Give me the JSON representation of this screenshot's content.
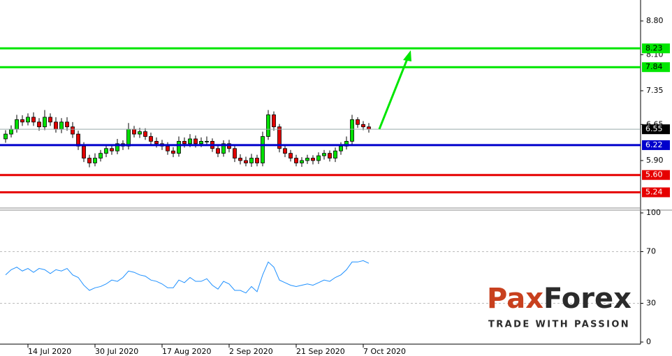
{
  "chart_data": [
    {
      "type": "candlestick",
      "ylim": [
        4.914,
        9.235
      ],
      "yticks": [
        {
          "value": 8.8,
          "label": "8.80"
        },
        {
          "value": 8.1,
          "label": "8.10"
        },
        7.35,
        6.65,
        {
          "value": 5.9,
          "label": "5.90"
        }
      ],
      "up_color": "#00e000",
      "down_color": "#e00000",
      "open": [
        6.35,
        6.45,
        6.55,
        6.75,
        6.7,
        6.8,
        6.7,
        6.6,
        6.8,
        6.7,
        6.55,
        6.7,
        6.6,
        6.45,
        6.2,
        5.95,
        5.85,
        5.95,
        6.05,
        6.15,
        6.1,
        6.25,
        6.2,
        6.55,
        6.45,
        6.5,
        6.4,
        6.3,
        6.25,
        6.2,
        6.1,
        6.05,
        6.3,
        6.25,
        6.35,
        6.25,
        6.3,
        6.3,
        6.15,
        6.05,
        6.25,
        6.15,
        5.95,
        5.9,
        5.85,
        5.95,
        5.85,
        6.4,
        6.85,
        6.6,
        6.15,
        6.05,
        5.95,
        5.85,
        5.9,
        5.95,
        5.9,
        6.0,
        6.05,
        5.95,
        6.1,
        6.2,
        6.3,
        6.75,
        6.65,
        6.6
      ],
      "high": [
        6.53,
        6.63,
        6.85,
        6.84,
        6.88,
        6.9,
        6.78,
        6.95,
        6.88,
        6.8,
        6.78,
        6.8,
        6.7,
        6.52,
        6.28,
        6.02,
        6.05,
        6.12,
        6.22,
        6.22,
        6.35,
        6.32,
        6.68,
        6.62,
        6.58,
        6.57,
        6.48,
        6.38,
        6.33,
        6.28,
        6.18,
        6.4,
        6.38,
        6.45,
        6.42,
        6.38,
        6.4,
        6.36,
        6.22,
        6.32,
        6.33,
        6.22,
        6.03,
        5.98,
        6.04,
        6.02,
        6.5,
        6.95,
        6.92,
        6.66,
        6.24,
        6.12,
        6.02,
        5.97,
        6.02,
        6.01,
        6.07,
        6.12,
        6.11,
        6.17,
        6.28,
        6.4,
        6.85,
        6.8,
        6.72,
        6.68
      ],
      "low": [
        6.27,
        6.38,
        6.48,
        6.62,
        6.63,
        6.62,
        6.52,
        6.53,
        6.62,
        6.48,
        6.47,
        6.52,
        6.37,
        6.12,
        5.87,
        5.76,
        5.78,
        5.88,
        5.97,
        6.02,
        6.03,
        6.12,
        6.13,
        6.38,
        6.37,
        6.33,
        6.22,
        6.17,
        6.12,
        6.02,
        5.97,
        5.98,
        6.17,
        6.18,
        6.17,
        6.18,
        6.22,
        6.08,
        5.97,
        5.98,
        6.07,
        5.87,
        5.82,
        5.78,
        5.77,
        5.78,
        5.78,
        6.33,
        6.52,
        6.07,
        5.97,
        5.88,
        5.78,
        5.77,
        5.83,
        5.82,
        5.83,
        5.92,
        5.88,
        5.87,
        6.02,
        6.13,
        6.22,
        6.58,
        6.53,
        6.48
      ],
      "close": [
        6.45,
        6.55,
        6.75,
        6.7,
        6.8,
        6.7,
        6.6,
        6.8,
        6.7,
        6.55,
        6.7,
        6.6,
        6.45,
        6.2,
        5.95,
        5.85,
        5.95,
        6.05,
        6.15,
        6.1,
        6.25,
        6.2,
        6.55,
        6.45,
        6.5,
        6.4,
        6.3,
        6.25,
        6.2,
        6.1,
        6.05,
        6.3,
        6.25,
        6.35,
        6.25,
        6.3,
        6.3,
        6.15,
        6.05,
        6.25,
        6.15,
        5.95,
        5.9,
        5.85,
        5.95,
        5.85,
        6.4,
        6.85,
        6.6,
        6.15,
        6.05,
        5.95,
        5.85,
        5.9,
        5.95,
        5.9,
        6.0,
        6.05,
        5.95,
        6.1,
        6.2,
        6.3,
        6.75,
        6.65,
        6.6,
        6.55
      ],
      "current_price": {
        "value": 6.55,
        "color": "#000000"
      },
      "levels": [
        {
          "value": 8.23,
          "color": "#00e600"
        },
        {
          "value": 7.84,
          "color": "#00e600"
        },
        {
          "value": 6.22,
          "color": "#0000cc"
        },
        {
          "value": 5.6,
          "label": "5.60",
          "color": "#e60000"
        },
        {
          "value": 5.24,
          "color": "#e60000"
        }
      ]
    },
    {
      "type": "line",
      "color": "#1e90ff",
      "ylim": [
        0,
        100
      ],
      "yticks": [
        100,
        70,
        30,
        0
      ],
      "dashed_levels": [
        70,
        30
      ],
      "categories": [
        null,
        null,
        null,
        null,
        "14 Jul 2020",
        null,
        null,
        null,
        null,
        null,
        null,
        null,
        null,
        null,
        null,
        null,
        "30 Jul 2020",
        null,
        null,
        null,
        null,
        null,
        null,
        null,
        null,
        null,
        null,
        null,
        "17 Aug 2020",
        null,
        null,
        null,
        null,
        null,
        null,
        null,
        null,
        null,
        null,
        null,
        "2 Sep 2020",
        null,
        null,
        null,
        null,
        null,
        null,
        null,
        null,
        null,
        null,
        null,
        "21 Sep 2020",
        null,
        null,
        null,
        null,
        null,
        null,
        null,
        null,
        null,
        null,
        null,
        "7 Oct 2020",
        null
      ],
      "values": [
        52,
        56,
        58,
        55,
        57,
        54,
        57,
        56,
        53,
        56,
        55,
        57,
        52,
        50,
        44,
        40,
        42,
        43,
        45,
        48,
        47,
        50,
        55,
        54,
        52,
        51,
        48,
        47,
        45,
        42,
        42,
        48,
        46,
        50,
        47,
        47,
        49,
        44,
        41,
        47,
        45,
        40,
        40,
        38,
        43,
        39,
        52,
        62,
        58,
        48,
        46,
        44,
        43,
        44,
        45,
        44,
        46,
        48,
        47,
        50,
        52,
        56,
        62,
        62,
        63,
        61
      ]
    }
  ],
  "logo": {
    "parts": [
      "Pa",
      "x",
      "Forex"
    ],
    "tagline": "TRADE WITH PASSION"
  }
}
